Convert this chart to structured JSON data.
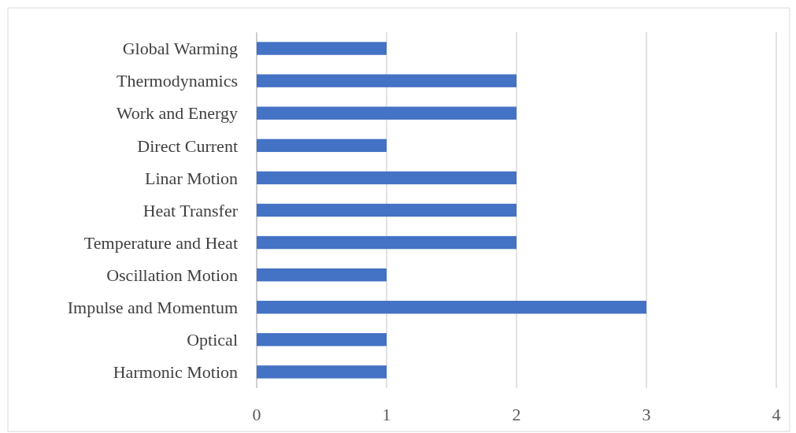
{
  "chart_data": {
    "type": "bar",
    "orientation": "horizontal",
    "categories": [
      "Global Warming",
      "Thermodynamics",
      "Work and Energy",
      "Direct Current",
      "Linar Motion",
      "Heat Transfer",
      "Temperature and Heat",
      "Oscillation Motion",
      "Impulse and Momentum",
      "Optical",
      "Harmonic Motion"
    ],
    "values": [
      1,
      2,
      2,
      1,
      2,
      2,
      2,
      1,
      3,
      1,
      1
    ],
    "color": "#4472c4",
    "xlim": [
      0,
      4
    ],
    "xticks": [
      0,
      1,
      2,
      3,
      4
    ],
    "grid": "x"
  }
}
